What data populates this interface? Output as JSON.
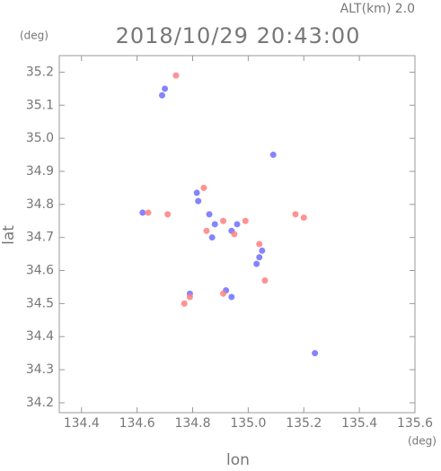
{
  "chart_data": {
    "type": "scatter",
    "title": "2018/10/29 20:43:00",
    "subtitle": "ALT(km) 2.0",
    "xlabel": "lon",
    "ylabel": "lat",
    "x_unit": "(deg)",
    "y_unit": "(deg)",
    "xlim": [
      134.32,
      135.6
    ],
    "ylim": [
      34.17,
      35.25
    ],
    "xticks": [
      134.4,
      134.6,
      134.8,
      {
        "value": 135,
        "label": "135.0"
      },
      135.2,
      135.4,
      135.6
    ],
    "yticks": [
      34.2,
      34.3,
      34.4,
      34.5,
      34.6,
      34.7,
      34.8,
      34.9,
      {
        "value": 35,
        "label": "35.0"
      },
      35.1,
      35.2
    ],
    "series": [
      {
        "color": "#6f6fff",
        "x": [
          134.7,
          134.69,
          135.09,
          134.815,
          134.82,
          134.86,
          134.88,
          134.96,
          134.94,
          135.05,
          135.03,
          134.62,
          134.79,
          134.92,
          134.94,
          135.24,
          134.87,
          135.04
        ],
        "y": [
          35.15,
          35.13,
          34.95,
          34.835,
          34.81,
          34.77,
          34.74,
          34.74,
          34.72,
          34.66,
          34.62,
          34.775,
          34.53,
          34.54,
          34.52,
          34.35,
          34.7,
          34.64
        ]
      },
      {
        "color": "#ff7f7f",
        "x": [
          134.74,
          134.84,
          134.91,
          134.99,
          134.95,
          135.04,
          134.64,
          134.79,
          134.77,
          134.91,
          135.2,
          135.06,
          134.85,
          134.71,
          135.17
        ],
        "y": [
          35.19,
          34.85,
          34.75,
          34.75,
          34.71,
          34.68,
          34.775,
          34.52,
          34.5,
          34.53,
          34.76,
          34.57,
          34.72,
          34.77,
          34.77
        ]
      }
    ]
  }
}
